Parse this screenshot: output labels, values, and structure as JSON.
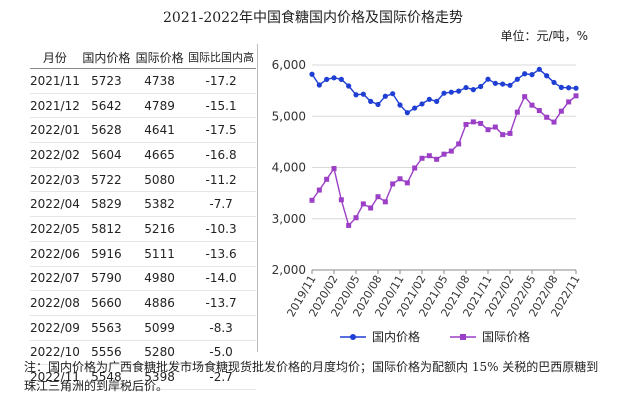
{
  "page": {
    "title": "2021-2022年中国食糖国内价格及国际价格走势",
    "unit": "单位：元/吨，%",
    "note": "注：国内价格为广西食糖批发市场食糖现货批发价格的月度均价；国际价格为配额内 15% 关税的巴西原糖到珠江三角洲的到岸税后价。"
  },
  "table": {
    "headers": [
      "月份",
      "国内价格",
      "国际价格",
      "国际比国内高"
    ],
    "rows": [
      [
        "2021/11",
        "5723",
        "4738",
        "-17.2"
      ],
      [
        "2021/12",
        "5642",
        "4789",
        "-15.1"
      ],
      [
        "2022/01",
        "5628",
        "4641",
        "-17.5"
      ],
      [
        "2022/02",
        "5604",
        "4665",
        "-16.8"
      ],
      [
        "2022/03",
        "5722",
        "5080",
        "-11.2"
      ],
      [
        "2022/04",
        "5829",
        "5382",
        "-7.7"
      ],
      [
        "2022/05",
        "5812",
        "5216",
        "-10.3"
      ],
      [
        "2022/06",
        "5916",
        "5111",
        "-13.6"
      ],
      [
        "2022/07",
        "5790",
        "4980",
        "-14.0"
      ],
      [
        "2022/08",
        "5660",
        "4886",
        "-13.7"
      ],
      [
        "2022/09",
        "5563",
        "5099",
        "-8.3"
      ],
      [
        "2022/10",
        "5556",
        "5280",
        "-5.0"
      ],
      [
        "2022/11",
        "5548",
        "5398",
        "-2.7"
      ]
    ]
  },
  "colors": {
    "domestic": "#1f3fd4",
    "international": "#9b3fc6",
    "grid": "#d9d9d9"
  },
  "chart_data": {
    "type": "line",
    "x": [
      "2019/11",
      "2019/12",
      "2020/01",
      "2020/02",
      "2020/03",
      "2020/04",
      "2020/05",
      "2020/06",
      "2020/07",
      "2020/08",
      "2020/09",
      "2020/10",
      "2020/11",
      "2020/12",
      "2021/01",
      "2021/02",
      "2021/03",
      "2021/04",
      "2021/05",
      "2021/06",
      "2021/07",
      "2021/08",
      "2021/09",
      "2021/10",
      "2021/11",
      "2021/12",
      "2022/01",
      "2022/02",
      "2022/03",
      "2022/04",
      "2022/05",
      "2022/06",
      "2022/07",
      "2022/08",
      "2022/09",
      "2022/10",
      "2022/11"
    ],
    "xticks": [
      "2019/11",
      "2020/02",
      "2020/05",
      "2020/08",
      "2020/11",
      "2021/02",
      "2021/05",
      "2021/08",
      "2021/11",
      "2022/02",
      "2022/05",
      "2022/08",
      "2022/11"
    ],
    "ylim": [
      2000,
      6000
    ],
    "yticks": [
      "2,000",
      "3,000",
      "4,000",
      "5,000",
      "6,000"
    ],
    "grid": true,
    "legend_position": "bottom",
    "series": [
      {
        "name": "国内价格",
        "marker": "circle",
        "values": [
          5820,
          5610,
          5720,
          5750,
          5720,
          5590,
          5420,
          5430,
          5290,
          5230,
          5390,
          5440,
          5220,
          5070,
          5160,
          5240,
          5330,
          5290,
          5450,
          5470,
          5490,
          5560,
          5520,
          5580,
          5723,
          5642,
          5628,
          5604,
          5722,
          5829,
          5812,
          5916,
          5790,
          5660,
          5563,
          5556,
          5548
        ]
      },
      {
        "name": "国际价格",
        "marker": "square",
        "values": [
          3360,
          3560,
          3770,
          3980,
          3370,
          2870,
          3020,
          3290,
          3210,
          3430,
          3330,
          3680,
          3780,
          3700,
          3990,
          4180,
          4230,
          4160,
          4260,
          4320,
          4460,
          4840,
          4890,
          4860,
          4738,
          4789,
          4641,
          4665,
          5080,
          5382,
          5216,
          5111,
          4980,
          4886,
          5099,
          5280,
          5398
        ]
      }
    ]
  }
}
